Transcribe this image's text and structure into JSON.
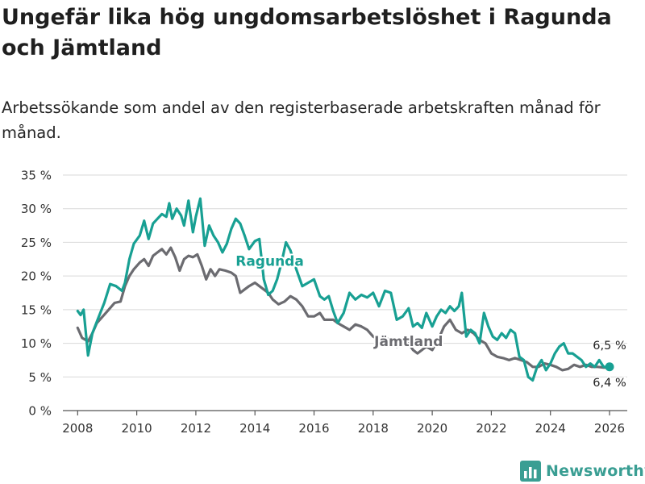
{
  "header": {
    "title": "Ungefär lika hög ungdomsarbetslöshet i Ragunda och Jämtland",
    "subtitle": "Arbetssökande som andel av den registerbaserade arbetskraften månad för månad."
  },
  "brand": {
    "name": "Newsworthy",
    "icon": "newsworthy-logo-icon",
    "color": "#3a9e93"
  },
  "chart_data": {
    "type": "line",
    "title": "Ungefär lika hög ungdomsarbetslöshet i Ragunda och Jämtland",
    "subtitle": "Arbetssökande som andel av den registerbaserade arbetskraften månad för månad.",
    "xlabel": "",
    "ylabel": "",
    "xlim": [
      2007.5,
      2026.6
    ],
    "ylim": [
      0,
      35
    ],
    "grid": true,
    "x_ticks": [
      2008,
      2010,
      2012,
      2014,
      2016,
      2018,
      2020,
      2022,
      2024,
      2026
    ],
    "x_tick_labels": [
      "2008",
      "2010",
      "2012",
      "2014",
      "2016",
      "2018",
      "2020",
      "2022",
      "2024",
      "2026"
    ],
    "y_ticks": [
      0,
      5,
      10,
      15,
      20,
      25,
      30,
      35
    ],
    "y_tick_labels": [
      "0 %",
      "5 %",
      "10 %",
      "15 %",
      "20 %",
      "25 %",
      "30 %",
      "35 %"
    ],
    "series": [
      {
        "name": "Ragunda",
        "label": "Ragunda",
        "label_at": [
          2014.5,
          21.5
        ],
        "color": "#18a093",
        "end_label": "6,5 %",
        "x": [
          2008.0,
          2008.1,
          2008.2,
          2008.35,
          2008.5,
          2008.7,
          2008.9,
          2009.1,
          2009.3,
          2009.5,
          2009.6,
          2009.75,
          2009.9,
          2010.1,
          2010.25,
          2010.4,
          2010.55,
          2010.7,
          2010.85,
          2011.0,
          2011.1,
          2011.2,
          2011.35,
          2011.5,
          2011.6,
          2011.75,
          2011.9,
          2012.0,
          2012.15,
          2012.3,
          2012.45,
          2012.6,
          2012.75,
          2012.9,
          2013.05,
          2013.2,
          2013.35,
          2013.5,
          2013.65,
          2013.8,
          2014.0,
          2014.15,
          2014.3,
          2014.45,
          2014.6,
          2014.75,
          2014.9,
          2015.05,
          2015.2,
          2015.4,
          2015.6,
          2015.8,
          2016.0,
          2016.2,
          2016.35,
          2016.5,
          2016.65,
          2016.8,
          2017.0,
          2017.2,
          2017.4,
          2017.6,
          2017.8,
          2018.0,
          2018.2,
          2018.4,
          2018.6,
          2018.8,
          2019.0,
          2019.2,
          2019.35,
          2019.5,
          2019.65,
          2019.8,
          2020.0,
          2020.15,
          2020.3,
          2020.45,
          2020.6,
          2020.75,
          2020.9,
          2021.0,
          2021.15,
          2021.3,
          2021.45,
          2021.6,
          2021.75,
          2021.9,
          2022.05,
          2022.2,
          2022.35,
          2022.5,
          2022.65,
          2022.8,
          2022.95,
          2023.1,
          2023.25,
          2023.4,
          2023.55,
          2023.7,
          2023.85,
          2024.0,
          2024.15,
          2024.3,
          2024.45,
          2024.6,
          2024.75,
          2024.9,
          2025.05,
          2025.2,
          2025.35,
          2025.5,
          2025.65,
          2025.8,
          2026.0
        ],
        "y": [
          14.8,
          14.2,
          15.0,
          8.2,
          11.5,
          13.8,
          16.0,
          18.8,
          18.5,
          17.8,
          19.0,
          22.5,
          24.8,
          26.0,
          28.2,
          25.5,
          27.8,
          28.5,
          29.2,
          28.8,
          30.8,
          28.5,
          30.0,
          29.0,
          27.5,
          31.2,
          26.5,
          28.8,
          31.5,
          24.5,
          27.5,
          26.0,
          25.0,
          23.5,
          24.8,
          27.0,
          28.5,
          27.8,
          26.0,
          24.0,
          25.2,
          25.5,
          19.5,
          17.2,
          17.8,
          19.5,
          22.0,
          25.0,
          23.8,
          21.0,
          18.5,
          19.0,
          19.5,
          17.0,
          16.5,
          17.0,
          14.8,
          13.0,
          14.5,
          17.5,
          16.5,
          17.2,
          16.8,
          17.5,
          15.5,
          17.8,
          17.5,
          13.5,
          14.0,
          15.2,
          12.5,
          13.0,
          12.3,
          14.5,
          12.5,
          14.0,
          15.0,
          14.5,
          15.5,
          14.8,
          15.5,
          17.5,
          11.0,
          12.0,
          11.5,
          10.0,
          14.5,
          12.5,
          11.0,
          10.5,
          11.5,
          10.8,
          12.0,
          11.5,
          8.0,
          7.5,
          5.0,
          4.5,
          6.5,
          7.5,
          6.0,
          7.0,
          8.5,
          9.5,
          10.0,
          8.5,
          8.5,
          8.0,
          7.5,
          6.5,
          7.0,
          6.5,
          7.5,
          6.5,
          6.5
        ]
      },
      {
        "name": "Jämtland",
        "label": "Jämtland",
        "label_at": [
          2019.2,
          9.6
        ],
        "color": "#6b6b70",
        "end_label": "6,4 %",
        "x": [
          2008.0,
          2008.15,
          2008.35,
          2008.5,
          2008.65,
          2008.85,
          2009.05,
          2009.25,
          2009.45,
          2009.6,
          2009.75,
          2009.9,
          2010.1,
          2010.25,
          2010.4,
          2010.55,
          2010.7,
          2010.85,
          2011.0,
          2011.15,
          2011.3,
          2011.45,
          2011.6,
          2011.75,
          2011.9,
          2012.05,
          2012.2,
          2012.35,
          2012.5,
          2012.65,
          2012.8,
          2013.0,
          2013.2,
          2013.35,
          2013.5,
          2013.65,
          2013.8,
          2014.0,
          2014.15,
          2014.3,
          2014.45,
          2014.6,
          2014.8,
          2015.0,
          2015.2,
          2015.4,
          2015.6,
          2015.8,
          2016.0,
          2016.2,
          2016.35,
          2016.5,
          2016.65,
          2016.8,
          2017.0,
          2017.2,
          2017.4,
          2017.6,
          2017.8,
          2018.0,
          2018.2,
          2018.4,
          2018.6,
          2018.8,
          2019.0,
          2019.2,
          2019.35,
          2019.5,
          2019.65,
          2019.8,
          2020.0,
          2020.2,
          2020.4,
          2020.6,
          2020.8,
          2021.0,
          2021.2,
          2021.4,
          2021.6,
          2021.8,
          2022.0,
          2022.2,
          2022.4,
          2022.6,
          2022.8,
          2023.0,
          2023.2,
          2023.4,
          2023.6,
          2023.8,
          2024.0,
          2024.2,
          2024.4,
          2024.6,
          2024.8,
          2025.0,
          2025.2,
          2025.4,
          2025.6,
          2025.8,
          2026.0
        ],
        "y": [
          12.3,
          10.8,
          10.3,
          11.5,
          13.0,
          14.0,
          15.0,
          16.0,
          16.2,
          18.5,
          20.0,
          21.0,
          22.0,
          22.5,
          21.5,
          23.0,
          23.5,
          24.0,
          23.2,
          24.2,
          22.8,
          20.8,
          22.5,
          23.0,
          22.8,
          23.2,
          21.5,
          19.5,
          21.0,
          20.0,
          21.0,
          20.8,
          20.5,
          20.0,
          17.5,
          18.0,
          18.5,
          19.0,
          18.5,
          18.0,
          17.5,
          16.5,
          15.8,
          16.2,
          17.0,
          16.5,
          15.5,
          14.0,
          14.0,
          14.5,
          13.5,
          13.5,
          13.5,
          13.0,
          12.5,
          12.0,
          12.8,
          12.5,
          12.0,
          11.0,
          10.5,
          10.8,
          10.5,
          9.5,
          9.8,
          10.0,
          9.0,
          8.5,
          9.0,
          9.5,
          9.0,
          10.5,
          12.5,
          13.5,
          12.0,
          11.5,
          12.0,
          11.5,
          10.5,
          10.0,
          8.5,
          8.0,
          7.8,
          7.5,
          7.8,
          7.5,
          7.2,
          6.5,
          6.5,
          7.0,
          6.8,
          6.5,
          6.0,
          6.2,
          6.8,
          6.5,
          6.8,
          6.5,
          6.5,
          6.4,
          6.4
        ]
      }
    ]
  }
}
